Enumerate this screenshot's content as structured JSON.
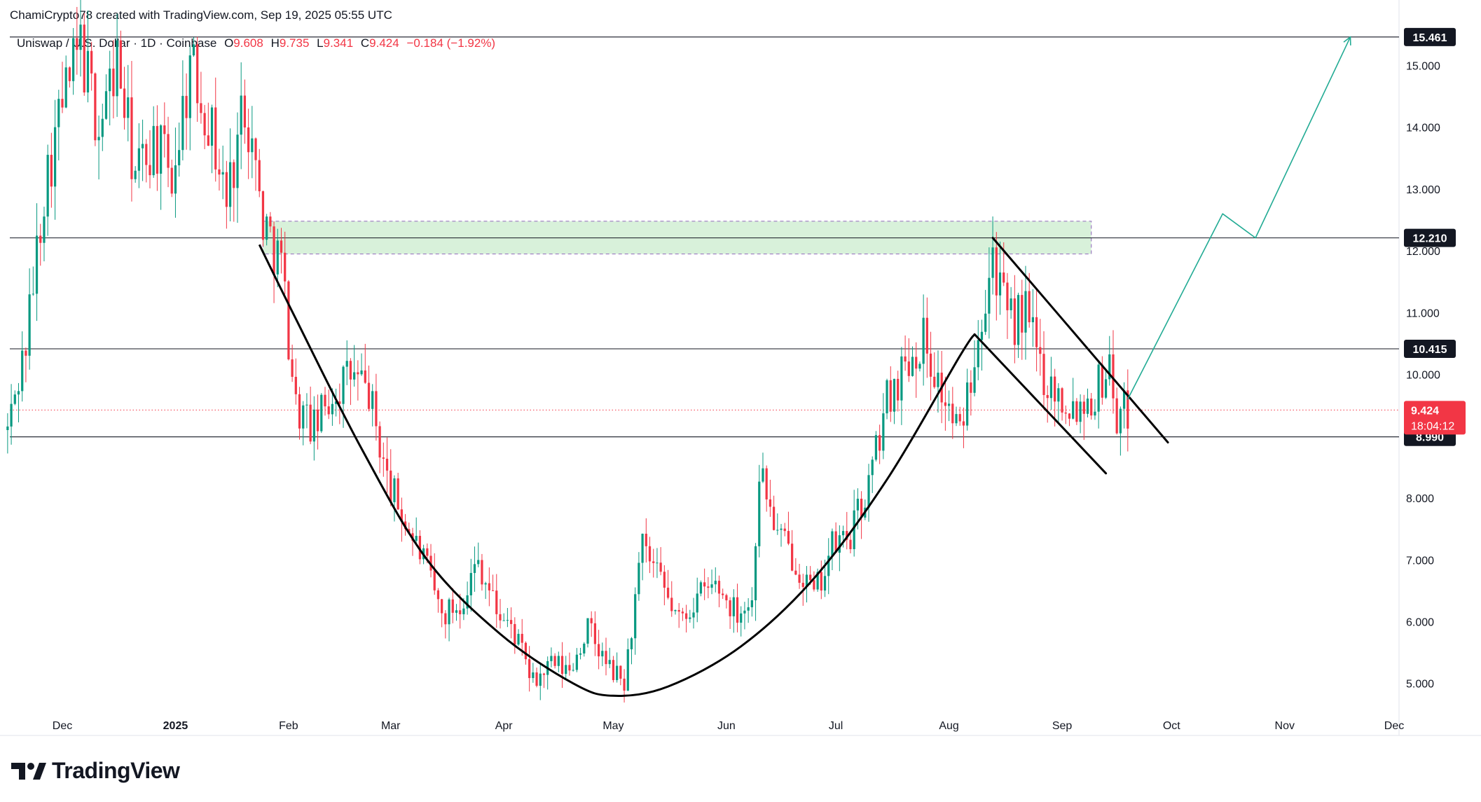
{
  "header": {
    "text": "ChamiCrypto78 created with TradingView.com, Sep 19, 2025 05:55 UTC"
  },
  "legend": {
    "symbol": "Uniswap / U.S. Dollar · 1D · Coinbase",
    "o_label": "O",
    "o": "9.608",
    "h_label": "H",
    "h": "9.735",
    "l_label": "L",
    "l": "9.341",
    "c_label": "C",
    "c": "9.424",
    "change": "−0.184 (−1.92%)"
  },
  "branding": {
    "logo_text": "TradingView"
  },
  "colors": {
    "up": "#089981",
    "down": "#f23645",
    "zone": "#d4f0d6",
    "projection": "#22ab94",
    "axis_text": "#131722"
  },
  "chart_data": {
    "type": "candlestick",
    "symbol": "UNIUSD",
    "timeframe": "1D",
    "y_ticks": [
      5.0,
      6.0,
      7.0,
      8.0,
      10.0,
      11.0,
      12.0,
      13.0,
      14.0,
      15.0
    ],
    "y_tick_labels": [
      "5.000",
      "6.000",
      "7.000",
      "8.000",
      "10.000",
      "11.000",
      "12.000",
      "13.000",
      "14.000",
      "15.000"
    ],
    "x_labels": [
      {
        "label": "Dec",
        "date": "2024-12-01"
      },
      {
        "label": "2025",
        "date": "2025-01-01"
      },
      {
        "label": "Feb",
        "date": "2025-02-01"
      },
      {
        "label": "Mar",
        "date": "2025-03-01"
      },
      {
        "label": "Apr",
        "date": "2025-04-01"
      },
      {
        "label": "May",
        "date": "2025-05-01"
      },
      {
        "label": "Jun",
        "date": "2025-06-01"
      },
      {
        "label": "Jul",
        "date": "2025-07-01"
      },
      {
        "label": "Aug",
        "date": "2025-08-01"
      },
      {
        "label": "Sep",
        "date": "2025-09-01"
      },
      {
        "label": "Oct",
        "date": "2025-10-01"
      },
      {
        "label": "Nov",
        "date": "2025-11-01"
      },
      {
        "label": "Dec",
        "date": "2025-12-01"
      }
    ],
    "horizontal_levels": [
      {
        "value": 15.461,
        "label": "15.461"
      },
      {
        "value": 12.21,
        "label": "12.210"
      },
      {
        "value": 10.415,
        "label": "10.415"
      },
      {
        "value": 8.99,
        "label": "8.990"
      }
    ],
    "current_price": {
      "value": 9.424,
      "label": "9.424",
      "countdown": "18:04:12"
    },
    "resistance_zone": {
      "from_date": "2025-01-25",
      "to_date": "2025-09-09",
      "low": 11.95,
      "high": 12.48
    },
    "price_path": [
      [
        "2024-11-16",
        9.1
      ],
      [
        "2024-11-21",
        10.5
      ],
      [
        "2024-11-26",
        13.0
      ],
      [
        "2024-12-01",
        14.4
      ],
      [
        "2024-12-06",
        15.3
      ],
      [
        "2024-12-11",
        14.0
      ],
      [
        "2024-12-16",
        15.1
      ],
      [
        "2024-12-21",
        13.2
      ],
      [
        "2024-12-26",
        13.8
      ],
      [
        "2024-12-31",
        13.2
      ],
      [
        "2025-01-05",
        15.0
      ],
      [
        "2025-01-10",
        14.2
      ],
      [
        "2025-01-15",
        12.8
      ],
      [
        "2025-01-20",
        14.5
      ],
      [
        "2025-01-25",
        12.5
      ],
      [
        "2025-01-30",
        11.8
      ],
      [
        "2025-02-03",
        9.5
      ],
      [
        "2025-02-08",
        9.1
      ],
      [
        "2025-02-13",
        9.7
      ],
      [
        "2025-02-18",
        10.0
      ],
      [
        "2025-02-23",
        9.7
      ],
      [
        "2025-02-28",
        8.3
      ],
      [
        "2025-03-05",
        7.6
      ],
      [
        "2025-03-10",
        7.0
      ],
      [
        "2025-03-15",
        6.1
      ],
      [
        "2025-03-20",
        6.3
      ],
      [
        "2025-03-25",
        7.0
      ],
      [
        "2025-03-30",
        6.2
      ],
      [
        "2025-04-04",
        5.8
      ],
      [
        "2025-04-09",
        5.0
      ],
      [
        "2025-04-14",
        5.3
      ],
      [
        "2025-04-19",
        5.2
      ],
      [
        "2025-04-24",
        5.9
      ],
      [
        "2025-04-29",
        5.3
      ],
      [
        "2025-05-04",
        5.0
      ],
      [
        "2025-05-09",
        7.2
      ],
      [
        "2025-05-14",
        6.6
      ],
      [
        "2025-05-19",
        6.0
      ],
      [
        "2025-05-24",
        6.4
      ],
      [
        "2025-05-29",
        6.6
      ],
      [
        "2025-06-03",
        6.2
      ],
      [
        "2025-06-08",
        6.3
      ],
      [
        "2025-06-10",
        8.5
      ],
      [
        "2025-06-15",
        7.4
      ],
      [
        "2025-06-20",
        7.0
      ],
      [
        "2025-06-25",
        6.4
      ],
      [
        "2025-06-30",
        7.2
      ],
      [
        "2025-07-05",
        7.4
      ],
      [
        "2025-07-10",
        8.2
      ],
      [
        "2025-07-15",
        9.6
      ],
      [
        "2025-07-20",
        10.2
      ],
      [
        "2025-07-25",
        10.6
      ],
      [
        "2025-07-30",
        9.7
      ],
      [
        "2025-08-04",
        9.0
      ],
      [
        "2025-08-09",
        10.8
      ],
      [
        "2025-08-13",
        12.0
      ],
      [
        "2025-08-17",
        10.8
      ],
      [
        "2025-08-22",
        11.0
      ],
      [
        "2025-08-27",
        10.0
      ],
      [
        "2025-09-01",
        9.6
      ],
      [
        "2025-09-05",
        9.5
      ],
      [
        "2025-09-10",
        9.7
      ],
      [
        "2025-09-14",
        10.2
      ],
      [
        "2025-09-16",
        9.3
      ],
      [
        "2025-09-19",
        9.424
      ]
    ],
    "drawings": {
      "cup_arc": [
        [
          "2025-01-24",
          12.1
        ],
        [
          "2025-02-03",
          10.9
        ],
        [
          "2025-02-21",
          8.8
        ],
        [
          "2025-03-11",
          7.0
        ],
        [
          "2025-03-31",
          5.8
        ],
        [
          "2025-04-20",
          5.0
        ],
        [
          "2025-05-01",
          4.8
        ],
        [
          "2025-05-16",
          4.95
        ],
        [
          "2025-06-05",
          5.6
        ],
        [
          "2025-06-25",
          6.7
        ],
        [
          "2025-07-15",
          8.3
        ],
        [
          "2025-08-04",
          10.3
        ],
        [
          "2025-08-08",
          10.65
        ]
      ],
      "flag_upper": [
        [
          "2025-08-13",
          12.21
        ],
        [
          "2025-09-30",
          8.9
        ]
      ],
      "flag_lower": [
        [
          "2025-08-08",
          10.65
        ],
        [
          "2025-09-13",
          8.4
        ]
      ],
      "projection": [
        [
          "2025-09-19",
          9.6
        ],
        [
          "2025-10-15",
          12.6
        ],
        [
          "2025-10-24",
          12.21
        ],
        [
          "2025-11-19",
          15.461
        ]
      ]
    }
  }
}
